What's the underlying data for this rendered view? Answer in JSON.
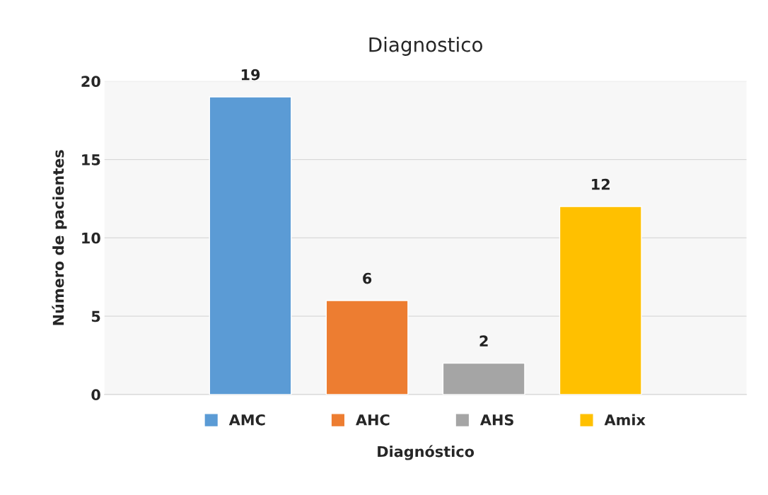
{
  "chart_data": {
    "type": "bar",
    "title": "Diagnostico",
    "xlabel": "Diagnóstico",
    "ylabel": "Número de pacientes",
    "categories": [
      null
    ],
    "series": [
      {
        "name": "AMC",
        "color": "#5b9bd5",
        "values": [
          19
        ]
      },
      {
        "name": "AHC",
        "color": "#ed7d31",
        "values": [
          6
        ]
      },
      {
        "name": "AHS",
        "color": "#a5a5a5",
        "values": [
          2
        ]
      },
      {
        "name": "Amix",
        "color": "#ffc000",
        "values": [
          12
        ]
      }
    ],
    "ylim": [
      0,
      20
    ],
    "yticks": [
      0,
      5,
      10,
      15,
      20
    ],
    "grid": "y",
    "legend": "bottom",
    "data_labels": true
  }
}
